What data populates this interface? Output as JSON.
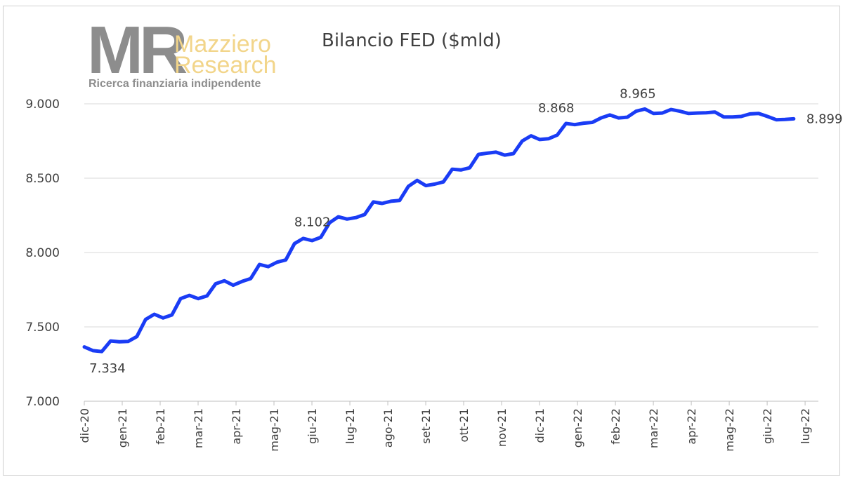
{
  "logo": {
    "mark": "MR",
    "name_line1": "Mazziero",
    "name_line2": "Research",
    "tagline": "Ricerca finanziaria indipendente"
  },
  "chart_data": {
    "type": "line",
    "title": "Bilancio FED ($mld)",
    "xlabel": "",
    "ylabel": "",
    "ylim": [
      7000,
      9500
    ],
    "yticks": [
      7000,
      7500,
      8000,
      8500,
      9000
    ],
    "ytick_labels": [
      "7.000",
      "7.500",
      "8.000",
      "8.500",
      "9.000"
    ],
    "grid": "horizontal",
    "legend": "none",
    "color": "#1a3cf5",
    "xtick_labels": [
      "dic-20",
      "gen-21",
      "feb-21",
      "mar-21",
      "apr-21",
      "mag-21",
      "giu-21",
      "lug-21",
      "ago-21",
      "set-21",
      "ott-21",
      "nov-21",
      "dic-21",
      "gen-22",
      "feb-22",
      "mar-22",
      "apr-22",
      "mag-22",
      "giu-22",
      "lug-22"
    ],
    "series": [
      {
        "values": [
          7365,
          7340,
          7334,
          7405,
          7400,
          7402,
          7435,
          7550,
          7585,
          7560,
          7580,
          7690,
          7712,
          7690,
          7708,
          7790,
          7810,
          7780,
          7805,
          7825,
          7920,
          7905,
          7935,
          7950,
          8060,
          8095,
          8080,
          8102,
          8200,
          8240,
          8225,
          8235,
          8255,
          8340,
          8330,
          8345,
          8350,
          8445,
          8485,
          8450,
          8460,
          8475,
          8560,
          8555,
          8570,
          8660,
          8668,
          8675,
          8655,
          8665,
          8750,
          8785,
          8760,
          8765,
          8790,
          8868,
          8860,
          8870,
          8875,
          8905,
          8925,
          8905,
          8910,
          8950,
          8965,
          8935,
          8938,
          8962,
          8950,
          8935,
          8938,
          8940,
          8945,
          8912,
          8912,
          8915,
          8932,
          8935,
          8915,
          8893,
          8895,
          8899
        ]
      }
    ],
    "annotations": [
      {
        "index": 2,
        "text": "7.334"
      },
      {
        "index": 27,
        "text": "8.102"
      },
      {
        "index": 55,
        "text": "8.868"
      },
      {
        "index": 64,
        "text": "8.965"
      },
      {
        "index": 81,
        "text": "8.899"
      }
    ]
  }
}
